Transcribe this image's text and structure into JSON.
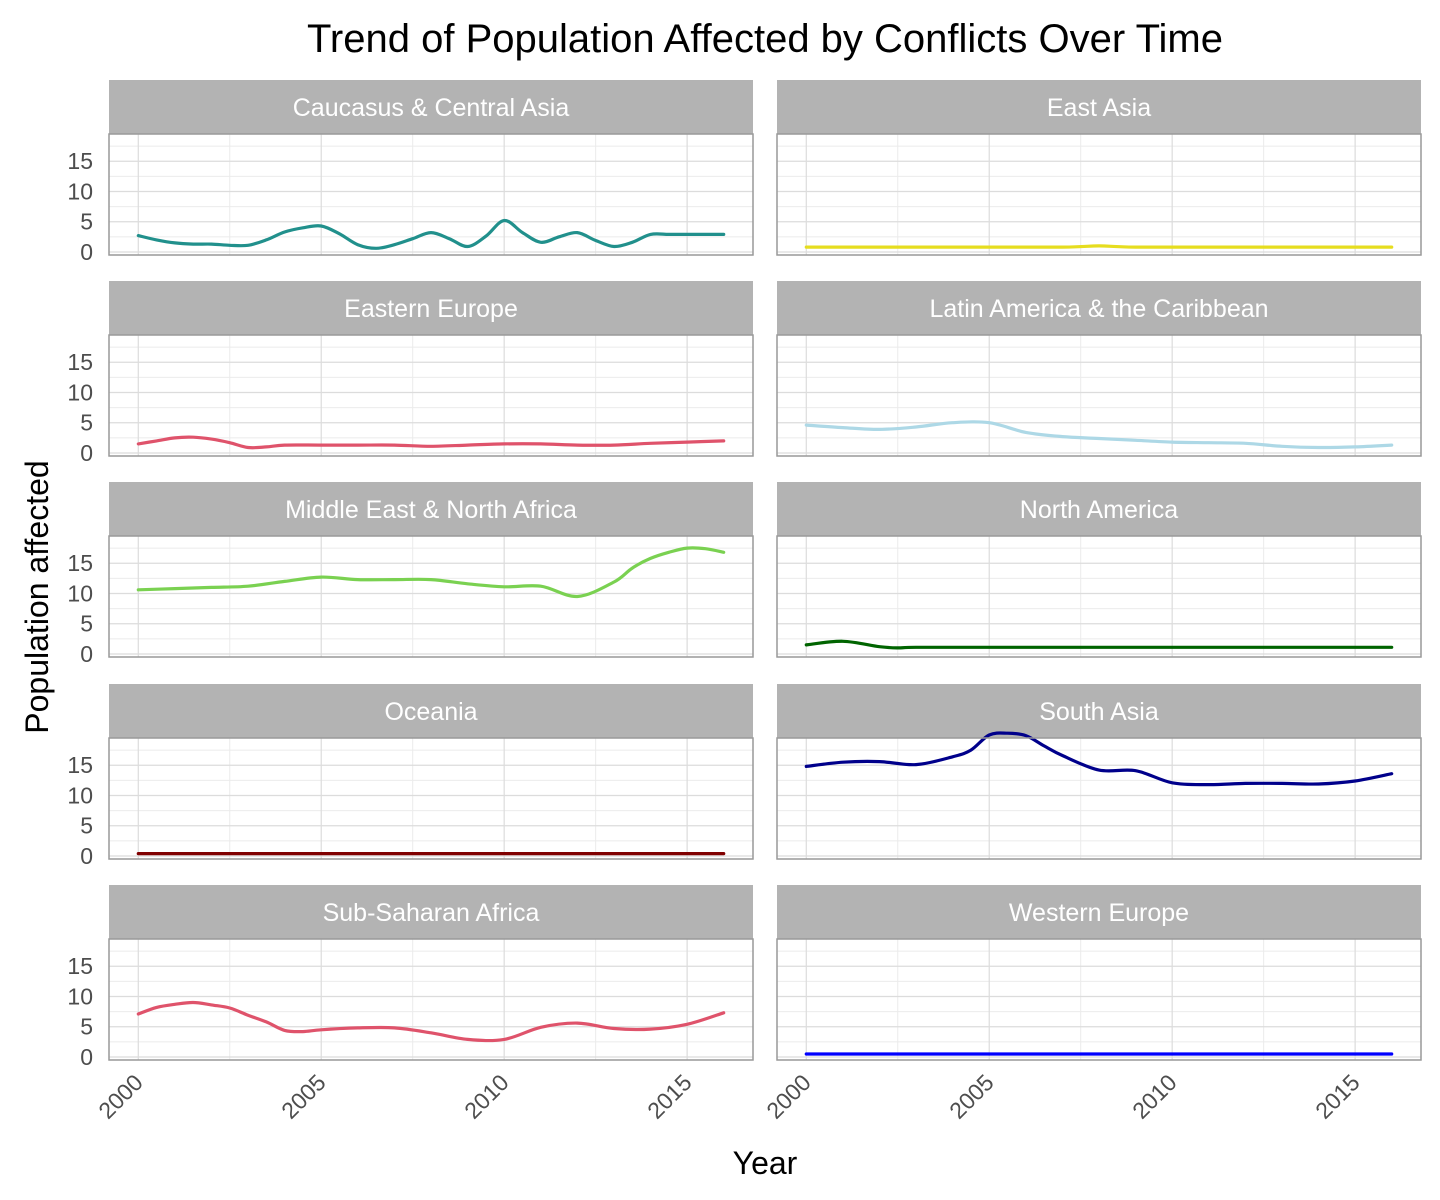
{
  "chart_data": {
    "type": "line",
    "title": "Trend of Population Affected by Conflicts Over Time",
    "xlabel": "Year",
    "ylabel": "Population affected",
    "xlim": [
      1999.2,
      2016.8
    ],
    "ylim": [
      -0.5,
      19.5
    ],
    "x_ticks": [
      2000,
      2005,
      2010,
      2015
    ],
    "y_ticks": [
      0,
      5,
      10,
      15
    ],
    "grid": true,
    "legend": "none",
    "facets": [
      {
        "name": "Caucasus & Central Asia",
        "color": "#21908c",
        "x": [
          2000,
          2000.5,
          2001,
          2001.5,
          2002,
          2002.5,
          2003,
          2003.5,
          2004,
          2004.5,
          2005,
          2005.5,
          2006,
          2006.5,
          2007,
          2007.5,
          2008,
          2008.5,
          2009,
          2009.5,
          2010,
          2010.5,
          2011,
          2011.5,
          2012,
          2012.5,
          2013,
          2013.5,
          2014,
          2014.5,
          2015,
          2015.5,
          2016
        ],
        "y": [
          2.7,
          2.0,
          1.5,
          1.3,
          1.3,
          1.1,
          1.1,
          2.0,
          3.3,
          4.0,
          4.3,
          3.0,
          1.2,
          0.6,
          1.2,
          2.2,
          3.2,
          2.2,
          0.9,
          2.6,
          5.2,
          3.2,
          1.6,
          2.5,
          3.2,
          1.9,
          0.9,
          1.6,
          2.9,
          2.9,
          2.9,
          2.9,
          2.9
        ]
      },
      {
        "name": "East Asia",
        "color": "#e6dd1f",
        "x": [
          2000,
          2004,
          2007,
          2008,
          2009,
          2012,
          2016
        ],
        "y": [
          0.8,
          0.8,
          0.8,
          1.0,
          0.8,
          0.8,
          0.8
        ]
      },
      {
        "name": "Eastern Europe",
        "color": "#df536b",
        "x": [
          2000,
          2000.5,
          2001,
          2001.5,
          2002,
          2002.5,
          2003,
          2003.5,
          2004,
          2005,
          2006,
          2007,
          2008,
          2009,
          2010,
          2011,
          2012,
          2013,
          2014,
          2015,
          2016
        ],
        "y": [
          1.5,
          2.0,
          2.5,
          2.6,
          2.3,
          1.7,
          0.9,
          1.0,
          1.3,
          1.3,
          1.3,
          1.3,
          1.1,
          1.3,
          1.5,
          1.5,
          1.3,
          1.3,
          1.6,
          1.8,
          2.0
        ]
      },
      {
        "name": "Latin America & the Caribbean",
        "color": "#add8e6",
        "x": [
          2000,
          2001,
          2002,
          2003,
          2004,
          2005,
          2006,
          2007,
          2008,
          2009,
          2010,
          2011,
          2012,
          2013,
          2014,
          2015,
          2016
        ],
        "y": [
          4.6,
          4.2,
          3.9,
          4.3,
          5.0,
          5.0,
          3.4,
          2.7,
          2.4,
          2.1,
          1.8,
          1.7,
          1.6,
          1.1,
          0.9,
          1.0,
          1.3
        ]
      },
      {
        "name": "Middle East & North Africa",
        "color": "#7ad151",
        "x": [
          2000,
          2001,
          2002,
          2003,
          2004,
          2005,
          2006,
          2007,
          2008,
          2009,
          2010,
          2011,
          2012,
          2013,
          2013.5,
          2014,
          2014.5,
          2015,
          2015.5,
          2016
        ],
        "y": [
          10.6,
          10.8,
          11.0,
          11.2,
          12.0,
          12.7,
          12.3,
          12.3,
          12.3,
          11.6,
          11.1,
          11.2,
          9.5,
          11.9,
          14.2,
          15.8,
          16.8,
          17.5,
          17.4,
          16.8
        ]
      },
      {
        "name": "North America",
        "color": "#006400",
        "x": [
          2000,
          2001,
          2002,
          2002.5,
          2003,
          2005,
          2010,
          2016
        ],
        "y": [
          1.5,
          2.1,
          1.2,
          1.0,
          1.1,
          1.1,
          1.1,
          1.1
        ]
      },
      {
        "name": "Oceania",
        "color": "#800000",
        "x": [
          2000,
          2016
        ],
        "y": [
          0.4,
          0.4
        ]
      },
      {
        "name": "South Asia",
        "color": "#00008b",
        "x": [
          2000,
          2001,
          2002,
          2003,
          2004,
          2004.5,
          2005,
          2005.5,
          2006,
          2006.5,
          2007,
          2008,
          2009,
          2010,
          2011,
          2012,
          2013,
          2014,
          2015,
          2016
        ],
        "y": [
          14.8,
          15.5,
          15.6,
          15.1,
          16.4,
          17.5,
          20.0,
          20.3,
          19.9,
          18.2,
          16.6,
          14.2,
          14.1,
          12.1,
          11.8,
          12.0,
          12.0,
          11.9,
          12.4,
          13.6
        ]
      },
      {
        "name": "Sub-Saharan Africa",
        "color": "#df536b",
        "x": [
          2000,
          2000.5,
          2001,
          2001.5,
          2002,
          2002.5,
          2003,
          2003.5,
          2004,
          2004.5,
          2005,
          2006,
          2007,
          2008,
          2009,
          2010,
          2011,
          2012,
          2013,
          2014,
          2015,
          2016
        ],
        "y": [
          7.1,
          8.2,
          8.7,
          9.0,
          8.6,
          8.1,
          6.9,
          5.8,
          4.4,
          4.2,
          4.5,
          4.8,
          4.8,
          4.0,
          2.9,
          2.9,
          4.9,
          5.6,
          4.7,
          4.6,
          5.4,
          7.3
        ]
      },
      {
        "name": "Western Europe",
        "color": "#0000ff",
        "x": [
          2000,
          2016
        ],
        "y": [
          0.5,
          0.5
        ]
      }
    ]
  }
}
